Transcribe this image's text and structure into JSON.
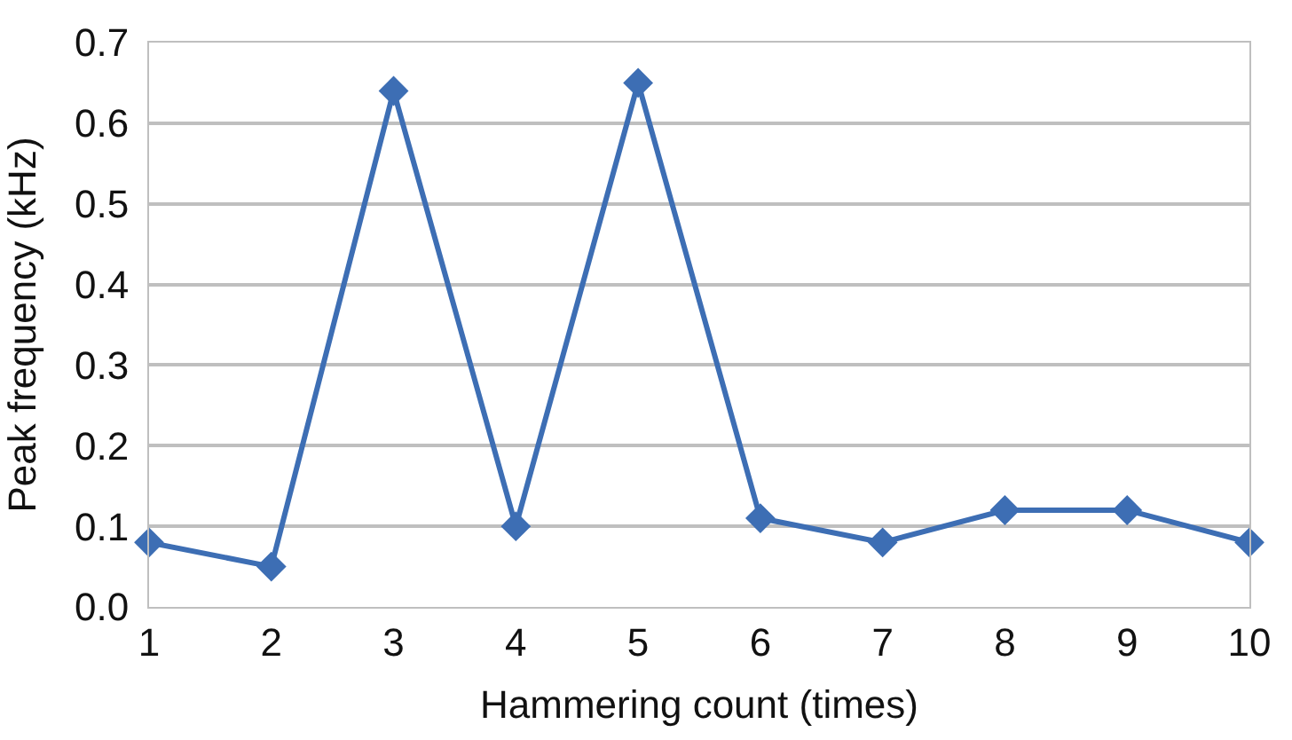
{
  "chart_data": {
    "type": "line",
    "xlabel": "Hammering count (times)",
    "ylabel": "Peak frequency (kHz)",
    "x": [
      1,
      2,
      3,
      4,
      5,
      6,
      7,
      8,
      9,
      10
    ],
    "series": [
      {
        "color": "#3d6eb4",
        "values": [
          0.08,
          0.05,
          0.64,
          0.1,
          0.65,
          0.11,
          0.08,
          0.12,
          0.12,
          0.08
        ]
      }
    ],
    "xlim": [
      1,
      10
    ],
    "xticks": [
      1,
      2,
      3,
      4,
      5,
      6,
      7,
      8,
      9,
      10
    ],
    "ylim": [
      0,
      0.7
    ],
    "yticks": [
      {
        "value": 0,
        "label": "0.0"
      },
      {
        "value": 0.1,
        "label": "0.1"
      },
      {
        "value": 0.2,
        "label": "0.2"
      },
      {
        "value": 0.3,
        "label": "0.3"
      },
      {
        "value": 0.4,
        "label": "0.4"
      },
      {
        "value": 0.5,
        "label": "0.5"
      },
      {
        "value": 0.6,
        "label": "0.6"
      },
      {
        "value": 0.7,
        "label": "0.7"
      }
    ],
    "grid": "y",
    "marker": "diamond",
    "line_style": "solid"
  }
}
